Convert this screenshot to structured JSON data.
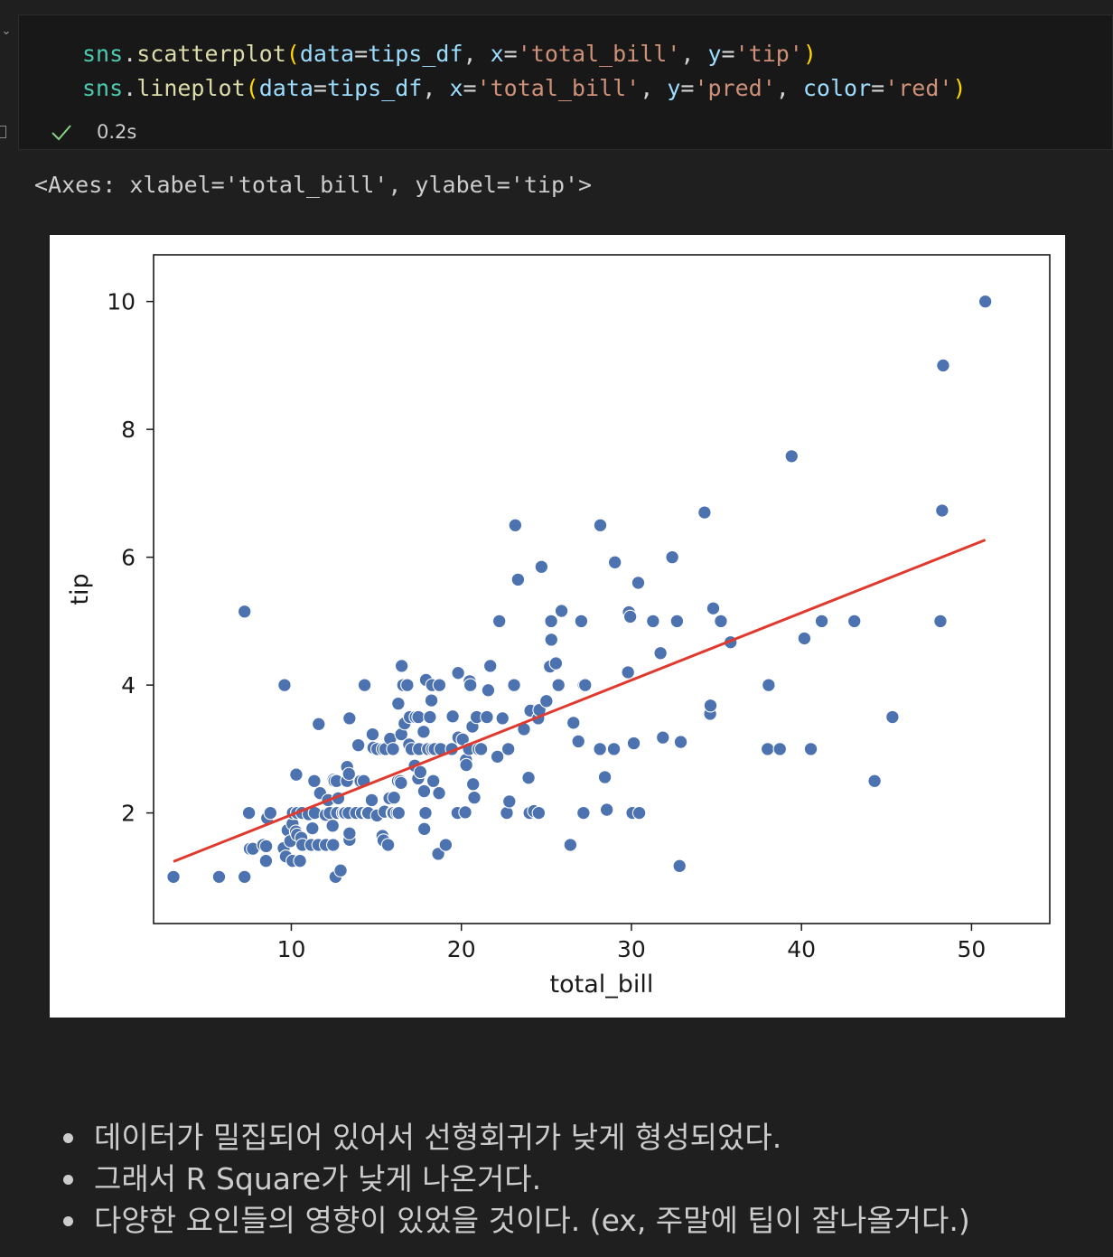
{
  "code_cell": {
    "lines": [
      {
        "module": "sns",
        "dot": ".",
        "func": "scatterplot",
        "open": "(",
        "k1": "data",
        "eq1": "=",
        "v1": "tips_df",
        "c1": ", ",
        "k2": "x",
        "eq2": "=",
        "v2": "'total_bill'",
        "c2": ", ",
        "k3": "y",
        "eq3": "=",
        "v3": "'tip'",
        "close": ")"
      },
      {
        "module": "sns",
        "dot": ".",
        "func": "lineplot",
        "open": "(",
        "k1": "data",
        "eq1": "=",
        "v1": "tips_df",
        "c1": ", ",
        "k2": "x",
        "eq2": "=",
        "v2": "'total_bill'",
        "c2": ", ",
        "k3": "y",
        "eq3": "=",
        "v3": "'pred'",
        "c3": ", ",
        "k4": "color",
        "eq4": "=",
        "v4": "'red'",
        "close": ")"
      }
    ],
    "status": {
      "icon": "check-icon",
      "duration": "0.2s"
    }
  },
  "output_text": "<Axes: xlabel='total_bill', ylabel='tip'>",
  "chart_data": {
    "type": "scatter",
    "xlabel": "total_bill",
    "ylabel": "tip",
    "xlim": [
      1.9,
      54.6
    ],
    "ylim": [
      0.27,
      10.73
    ],
    "xticks": [
      10,
      20,
      30,
      40,
      50
    ],
    "yticks": [
      2,
      4,
      6,
      8,
      10
    ],
    "xtick_labels": [
      "10",
      "20",
      "30",
      "40",
      "50"
    ],
    "ytick_labels": [
      "2",
      "4",
      "6",
      "8",
      "10"
    ],
    "grid": false,
    "point_color": "#4c72b0",
    "line_color": "#e03a2f",
    "regression_line": {
      "x": [
        3.07,
        50.81
      ],
      "y": [
        1.24,
        6.27
      ]
    },
    "points": [
      [
        3.07,
        1.0
      ],
      [
        5.75,
        1.0
      ],
      [
        7.25,
        1.0
      ],
      [
        7.25,
        5.15
      ],
      [
        7.51,
        2.0
      ],
      [
        7.56,
        1.44
      ],
      [
        7.74,
        1.44
      ],
      [
        8.35,
        1.5
      ],
      [
        8.51,
        1.25
      ],
      [
        8.52,
        1.48
      ],
      [
        8.58,
        1.92
      ],
      [
        8.77,
        2.0
      ],
      [
        9.55,
        1.45
      ],
      [
        9.6,
        4.0
      ],
      [
        9.68,
        1.32
      ],
      [
        9.78,
        1.73
      ],
      [
        9.94,
        1.56
      ],
      [
        10.07,
        1.25
      ],
      [
        10.07,
        1.83
      ],
      [
        10.09,
        2.0
      ],
      [
        10.27,
        1.71
      ],
      [
        10.29,
        2.6
      ],
      [
        10.33,
        2.0
      ],
      [
        10.34,
        1.66
      ],
      [
        10.34,
        2.0
      ],
      [
        10.51,
        1.25
      ],
      [
        10.59,
        1.61
      ],
      [
        10.63,
        2.0
      ],
      [
        10.65,
        1.5
      ],
      [
        11.02,
        1.98
      ],
      [
        11.17,
        1.5
      ],
      [
        11.24,
        1.76
      ],
      [
        11.35,
        2.5
      ],
      [
        11.38,
        2.0
      ],
      [
        11.59,
        1.5
      ],
      [
        11.61,
        3.39
      ],
      [
        11.69,
        2.31
      ],
      [
        12.02,
        1.97
      ],
      [
        12.03,
        1.5
      ],
      [
        12.16,
        2.2
      ],
      [
        12.26,
        2.0
      ],
      [
        12.43,
        1.8
      ],
      [
        12.46,
        1.5
      ],
      [
        12.48,
        2.52
      ],
      [
        12.54,
        2.5
      ],
      [
        12.6,
        1.0
      ],
      [
        12.66,
        2.5
      ],
      [
        12.69,
        2.0
      ],
      [
        12.76,
        2.23
      ],
      [
        12.9,
        1.1
      ],
      [
        13.03,
        2.0
      ],
      [
        13.13,
        2.0
      ],
      [
        13.16,
        2.0
      ],
      [
        13.27,
        2.5
      ],
      [
        13.28,
        2.72
      ],
      [
        13.37,
        2.0
      ],
      [
        13.39,
        2.61
      ],
      [
        13.42,
        3.48
      ],
      [
        13.42,
        1.58
      ],
      [
        13.42,
        1.68
      ],
      [
        13.81,
        2.0
      ],
      [
        13.94,
        3.06
      ],
      [
        14.07,
        2.5
      ],
      [
        14.15,
        2.0
      ],
      [
        14.26,
        2.5
      ],
      [
        14.31,
        4.0
      ],
      [
        14.48,
        2.0
      ],
      [
        14.52,
        2.0
      ],
      [
        14.73,
        2.2
      ],
      [
        14.78,
        3.23
      ],
      [
        14.83,
        3.02
      ],
      [
        15.04,
        1.96
      ],
      [
        15.06,
        3.0
      ],
      [
        15.36,
        1.64
      ],
      [
        15.38,
        3.0
      ],
      [
        15.42,
        1.57
      ],
      [
        15.48,
        2.02
      ],
      [
        15.53,
        3.0
      ],
      [
        15.69,
        1.5
      ],
      [
        15.77,
        2.23
      ],
      [
        15.81,
        3.16
      ],
      [
        15.95,
        2.0
      ],
      [
        15.98,
        3.0
      ],
      [
        16.0,
        2.0
      ],
      [
        16.04,
        2.24
      ],
      [
        16.21,
        2.0
      ],
      [
        16.27,
        2.5
      ],
      [
        16.29,
        3.71
      ],
      [
        16.31,
        2.0
      ],
      [
        16.4,
        2.5
      ],
      [
        16.45,
        2.47
      ],
      [
        16.47,
        3.23
      ],
      [
        16.49,
        4.3
      ],
      [
        16.58,
        4.0
      ],
      [
        16.66,
        3.4
      ],
      [
        16.82,
        4.0
      ],
      [
        16.93,
        3.07
      ],
      [
        16.97,
        3.5
      ],
      [
        17.07,
        3.0
      ],
      [
        17.26,
        2.74
      ],
      [
        17.31,
        3.5
      ],
      [
        17.46,
        2.54
      ],
      [
        17.47,
        3.5
      ],
      [
        17.51,
        3.0
      ],
      [
        17.59,
        2.64
      ],
      [
        17.78,
        3.27
      ],
      [
        17.81,
        2.34
      ],
      [
        17.82,
        1.75
      ],
      [
        17.89,
        2.0
      ],
      [
        17.92,
        4.08
      ],
      [
        18.04,
        3.0
      ],
      [
        18.15,
        3.5
      ],
      [
        18.24,
        3.76
      ],
      [
        18.28,
        4.0
      ],
      [
        18.29,
        3.0
      ],
      [
        18.35,
        2.5
      ],
      [
        18.43,
        3.0
      ],
      [
        18.64,
        1.36
      ],
      [
        18.69,
        2.31
      ],
      [
        18.71,
        4.0
      ],
      [
        18.78,
        3.0
      ],
      [
        19.08,
        1.5
      ],
      [
        19.44,
        3.0
      ],
      [
        19.49,
        3.51
      ],
      [
        19.77,
        2.0
      ],
      [
        19.81,
        4.19
      ],
      [
        19.82,
        3.18
      ],
      [
        20.08,
        3.15
      ],
      [
        20.23,
        2.01
      ],
      [
        20.27,
        2.83
      ],
      [
        20.29,
        2.75
      ],
      [
        20.45,
        3.0
      ],
      [
        20.49,
        4.06
      ],
      [
        20.53,
        4.0
      ],
      [
        20.65,
        3.35
      ],
      [
        20.69,
        2.45
      ],
      [
        20.76,
        2.24
      ],
      [
        20.9,
        3.5
      ],
      [
        21.01,
        3.0
      ],
      [
        21.16,
        3.0
      ],
      [
        21.5,
        3.5
      ],
      [
        21.58,
        3.92
      ],
      [
        21.7,
        4.3
      ],
      [
        22.12,
        2.88
      ],
      [
        22.23,
        5.0
      ],
      [
        22.42,
        3.48
      ],
      [
        22.67,
        2.0
      ],
      [
        22.76,
        3.0
      ],
      [
        22.82,
        2.18
      ],
      [
        23.1,
        4.0
      ],
      [
        23.17,
        6.5
      ],
      [
        23.33,
        5.65
      ],
      [
        23.68,
        3.31
      ],
      [
        23.95,
        2.55
      ],
      [
        24.01,
        2.0
      ],
      [
        24.06,
        3.6
      ],
      [
        24.27,
        2.03
      ],
      [
        24.52,
        3.48
      ],
      [
        24.55,
        2.0
      ],
      [
        24.59,
        3.61
      ],
      [
        24.71,
        5.85
      ],
      [
        25.0,
        3.75
      ],
      [
        25.21,
        4.29
      ],
      [
        25.28,
        5.0
      ],
      [
        25.29,
        4.71
      ],
      [
        25.56,
        4.34
      ],
      [
        25.71,
        4.0
      ],
      [
        25.89,
        5.16
      ],
      [
        26.41,
        1.5
      ],
      [
        26.59,
        3.41
      ],
      [
        26.88,
        3.12
      ],
      [
        27.05,
        5.0
      ],
      [
        27.18,
        2.0
      ],
      [
        27.2,
        4.0
      ],
      [
        27.28,
        4.0
      ],
      [
        28.15,
        3.0
      ],
      [
        28.17,
        6.5
      ],
      [
        28.44,
        2.56
      ],
      [
        28.55,
        2.05
      ],
      [
        28.97,
        3.0
      ],
      [
        29.03,
        5.92
      ],
      [
        29.8,
        4.2
      ],
      [
        29.85,
        5.14
      ],
      [
        29.93,
        5.07
      ],
      [
        30.06,
        2.0
      ],
      [
        30.14,
        3.09
      ],
      [
        30.4,
        5.6
      ],
      [
        30.46,
        2.0
      ],
      [
        31.27,
        5.0
      ],
      [
        31.71,
        4.5
      ],
      [
        31.85,
        3.18
      ],
      [
        32.4,
        6.0
      ],
      [
        32.68,
        5.0
      ],
      [
        32.83,
        1.17
      ],
      [
        32.9,
        3.11
      ],
      [
        34.3,
        6.7
      ],
      [
        34.63,
        3.55
      ],
      [
        34.65,
        3.68
      ],
      [
        34.81,
        5.2
      ],
      [
        35.26,
        5.0
      ],
      [
        35.83,
        4.67
      ],
      [
        38.01,
        3.0
      ],
      [
        38.07,
        4.0
      ],
      [
        38.73,
        3.0
      ],
      [
        39.42,
        7.58
      ],
      [
        40.17,
        4.73
      ],
      [
        40.55,
        3.0
      ],
      [
        41.19,
        5.0
      ],
      [
        43.11,
        5.0
      ],
      [
        44.3,
        2.5
      ],
      [
        45.35,
        3.5
      ],
      [
        48.17,
        5.0
      ],
      [
        48.27,
        6.73
      ],
      [
        48.33,
        9.0
      ],
      [
        50.81,
        10.0
      ]
    ]
  },
  "notes": [
    "데이터가 밀집되어 있어서 선형회귀가 낮게 형성되었다.",
    "그래서 R Square가 낮게 나온거다.",
    "다양한 요인들의 영향이 있었을 것이다. (ex, 주말에 팁이 잘나올거다.)"
  ]
}
